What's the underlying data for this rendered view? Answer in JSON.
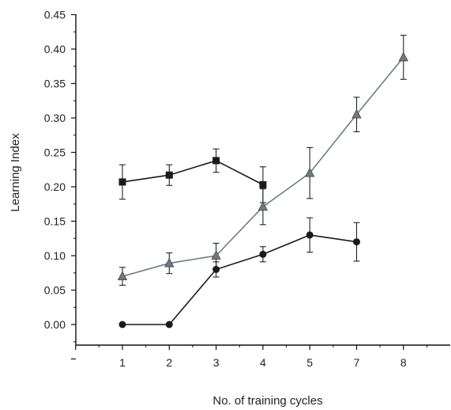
{
  "chart_data": {
    "type": "line",
    "title": "",
    "xlabel": "No. of training cycles",
    "ylabel": "Learning Index",
    "categories": [
      "1",
      "2",
      "3",
      "4",
      "5",
      "7",
      "8"
    ],
    "ylim": [
      -0.05,
      0.45
    ],
    "yticks": [
      "0.00",
      "0.05",
      "0.10",
      "0.15",
      "0.20",
      "0.25",
      "0.30",
      "0.35",
      "0.40",
      "0.45"
    ],
    "legend": "none",
    "grid": false,
    "series": [
      {
        "marker": "square",
        "color": "#1a1a1a",
        "values": [
          0.207,
          0.217,
          0.238,
          0.203,
          null,
          null,
          null
        ],
        "errors": [
          0.025,
          0.015,
          0.017,
          0.026,
          null,
          null,
          null
        ]
      },
      {
        "marker": "triangle",
        "color": "#6e7a7d",
        "values": [
          0.07,
          0.089,
          0.1,
          0.171,
          0.22,
          0.305,
          0.388
        ],
        "errors": [
          0.013,
          0.015,
          0.018,
          0.026,
          0.037,
          0.025,
          0.032
        ]
      },
      {
        "marker": "circle",
        "color": "#1a1a1a",
        "values": [
          0.0,
          0.0,
          0.08,
          0.102,
          0.13,
          0.12,
          null
        ],
        "errors": [
          null,
          null,
          0.011,
          0.011,
          0.025,
          0.028,
          null
        ]
      }
    ]
  }
}
